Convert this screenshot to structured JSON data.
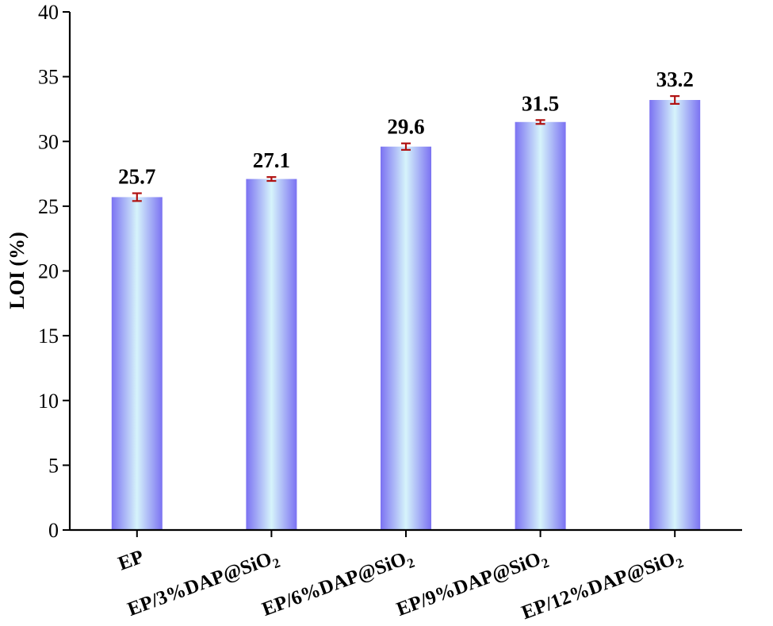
{
  "chart_data": {
    "type": "bar",
    "ylabel": "LOI (%)",
    "ylim": [
      0,
      40
    ],
    "yticks": [
      0,
      5,
      10,
      15,
      20,
      25,
      30,
      35,
      40
    ],
    "categories": [
      {
        "main": "EP",
        "sub": ""
      },
      {
        "main": "EP/3%DAP@SiO",
        "sub": "2"
      },
      {
        "main": "EP/6%DAP@SiO",
        "sub": "2"
      },
      {
        "main": "EP/9%DAP@SiO",
        "sub": "2"
      },
      {
        "main": "EP/12%DAP@SiO",
        "sub": "2"
      }
    ],
    "values": [
      25.7,
      27.1,
      29.6,
      31.5,
      33.2
    ],
    "value_labels": [
      "25.7",
      "27.1",
      "29.6",
      "31.5",
      "33.2"
    ],
    "errors": [
      0.3,
      0.15,
      0.25,
      0.15,
      0.3
    ],
    "colors": {
      "bar_edge": "#7b72f2",
      "bar_center": "#d6f4fb",
      "error_bar": "#b01212",
      "axis": "#000000"
    }
  }
}
